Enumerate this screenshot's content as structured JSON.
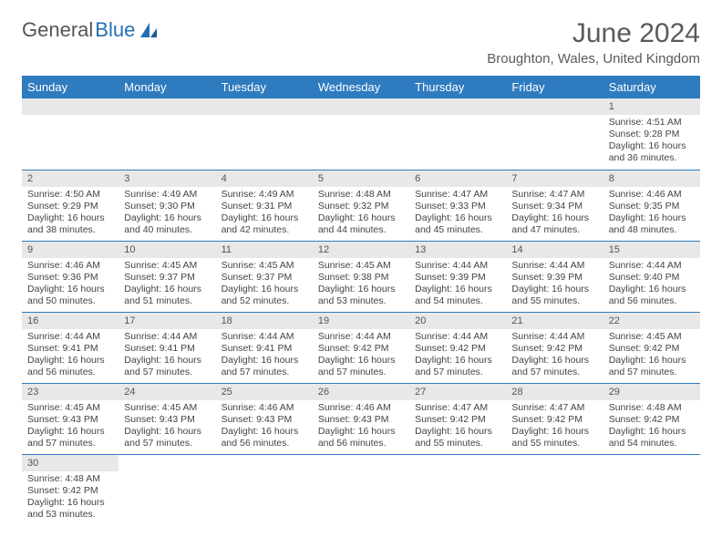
{
  "logo": {
    "general": "General",
    "blue": "Blue"
  },
  "title": "June 2024",
  "location": "Broughton, Wales, United Kingdom",
  "header_bg": "#2f7bbf",
  "header_fg": "#ffffff",
  "daynum_bg": "#e8e8e8",
  "border_color": "#2f7bbf",
  "weekdays": [
    "Sunday",
    "Monday",
    "Tuesday",
    "Wednesday",
    "Thursday",
    "Friday",
    "Saturday"
  ],
  "weeks": [
    [
      null,
      null,
      null,
      null,
      null,
      null,
      {
        "n": "1",
        "sunrise": "Sunrise: 4:51 AM",
        "sunset": "Sunset: 9:28 PM",
        "daylight": "Daylight: 16 hours and 36 minutes."
      }
    ],
    [
      {
        "n": "2",
        "sunrise": "Sunrise: 4:50 AM",
        "sunset": "Sunset: 9:29 PM",
        "daylight": "Daylight: 16 hours and 38 minutes."
      },
      {
        "n": "3",
        "sunrise": "Sunrise: 4:49 AM",
        "sunset": "Sunset: 9:30 PM",
        "daylight": "Daylight: 16 hours and 40 minutes."
      },
      {
        "n": "4",
        "sunrise": "Sunrise: 4:49 AM",
        "sunset": "Sunset: 9:31 PM",
        "daylight": "Daylight: 16 hours and 42 minutes."
      },
      {
        "n": "5",
        "sunrise": "Sunrise: 4:48 AM",
        "sunset": "Sunset: 9:32 PM",
        "daylight": "Daylight: 16 hours and 44 minutes."
      },
      {
        "n": "6",
        "sunrise": "Sunrise: 4:47 AM",
        "sunset": "Sunset: 9:33 PM",
        "daylight": "Daylight: 16 hours and 45 minutes."
      },
      {
        "n": "7",
        "sunrise": "Sunrise: 4:47 AM",
        "sunset": "Sunset: 9:34 PM",
        "daylight": "Daylight: 16 hours and 47 minutes."
      },
      {
        "n": "8",
        "sunrise": "Sunrise: 4:46 AM",
        "sunset": "Sunset: 9:35 PM",
        "daylight": "Daylight: 16 hours and 48 minutes."
      }
    ],
    [
      {
        "n": "9",
        "sunrise": "Sunrise: 4:46 AM",
        "sunset": "Sunset: 9:36 PM",
        "daylight": "Daylight: 16 hours and 50 minutes."
      },
      {
        "n": "10",
        "sunrise": "Sunrise: 4:45 AM",
        "sunset": "Sunset: 9:37 PM",
        "daylight": "Daylight: 16 hours and 51 minutes."
      },
      {
        "n": "11",
        "sunrise": "Sunrise: 4:45 AM",
        "sunset": "Sunset: 9:37 PM",
        "daylight": "Daylight: 16 hours and 52 minutes."
      },
      {
        "n": "12",
        "sunrise": "Sunrise: 4:45 AM",
        "sunset": "Sunset: 9:38 PM",
        "daylight": "Daylight: 16 hours and 53 minutes."
      },
      {
        "n": "13",
        "sunrise": "Sunrise: 4:44 AM",
        "sunset": "Sunset: 9:39 PM",
        "daylight": "Daylight: 16 hours and 54 minutes."
      },
      {
        "n": "14",
        "sunrise": "Sunrise: 4:44 AM",
        "sunset": "Sunset: 9:39 PM",
        "daylight": "Daylight: 16 hours and 55 minutes."
      },
      {
        "n": "15",
        "sunrise": "Sunrise: 4:44 AM",
        "sunset": "Sunset: 9:40 PM",
        "daylight": "Daylight: 16 hours and 56 minutes."
      }
    ],
    [
      {
        "n": "16",
        "sunrise": "Sunrise: 4:44 AM",
        "sunset": "Sunset: 9:41 PM",
        "daylight": "Daylight: 16 hours and 56 minutes."
      },
      {
        "n": "17",
        "sunrise": "Sunrise: 4:44 AM",
        "sunset": "Sunset: 9:41 PM",
        "daylight": "Daylight: 16 hours and 57 minutes."
      },
      {
        "n": "18",
        "sunrise": "Sunrise: 4:44 AM",
        "sunset": "Sunset: 9:41 PM",
        "daylight": "Daylight: 16 hours and 57 minutes."
      },
      {
        "n": "19",
        "sunrise": "Sunrise: 4:44 AM",
        "sunset": "Sunset: 9:42 PM",
        "daylight": "Daylight: 16 hours and 57 minutes."
      },
      {
        "n": "20",
        "sunrise": "Sunrise: 4:44 AM",
        "sunset": "Sunset: 9:42 PM",
        "daylight": "Daylight: 16 hours and 57 minutes."
      },
      {
        "n": "21",
        "sunrise": "Sunrise: 4:44 AM",
        "sunset": "Sunset: 9:42 PM",
        "daylight": "Daylight: 16 hours and 57 minutes."
      },
      {
        "n": "22",
        "sunrise": "Sunrise: 4:45 AM",
        "sunset": "Sunset: 9:42 PM",
        "daylight": "Daylight: 16 hours and 57 minutes."
      }
    ],
    [
      {
        "n": "23",
        "sunrise": "Sunrise: 4:45 AM",
        "sunset": "Sunset: 9:43 PM",
        "daylight": "Daylight: 16 hours and 57 minutes."
      },
      {
        "n": "24",
        "sunrise": "Sunrise: 4:45 AM",
        "sunset": "Sunset: 9:43 PM",
        "daylight": "Daylight: 16 hours and 57 minutes."
      },
      {
        "n": "25",
        "sunrise": "Sunrise: 4:46 AM",
        "sunset": "Sunset: 9:43 PM",
        "daylight": "Daylight: 16 hours and 56 minutes."
      },
      {
        "n": "26",
        "sunrise": "Sunrise: 4:46 AM",
        "sunset": "Sunset: 9:43 PM",
        "daylight": "Daylight: 16 hours and 56 minutes."
      },
      {
        "n": "27",
        "sunrise": "Sunrise: 4:47 AM",
        "sunset": "Sunset: 9:42 PM",
        "daylight": "Daylight: 16 hours and 55 minutes."
      },
      {
        "n": "28",
        "sunrise": "Sunrise: 4:47 AM",
        "sunset": "Sunset: 9:42 PM",
        "daylight": "Daylight: 16 hours and 55 minutes."
      },
      {
        "n": "29",
        "sunrise": "Sunrise: 4:48 AM",
        "sunset": "Sunset: 9:42 PM",
        "daylight": "Daylight: 16 hours and 54 minutes."
      }
    ],
    [
      {
        "n": "30",
        "sunrise": "Sunrise: 4:48 AM",
        "sunset": "Sunset: 9:42 PM",
        "daylight": "Daylight: 16 hours and 53 minutes."
      },
      null,
      null,
      null,
      null,
      null,
      null
    ]
  ]
}
